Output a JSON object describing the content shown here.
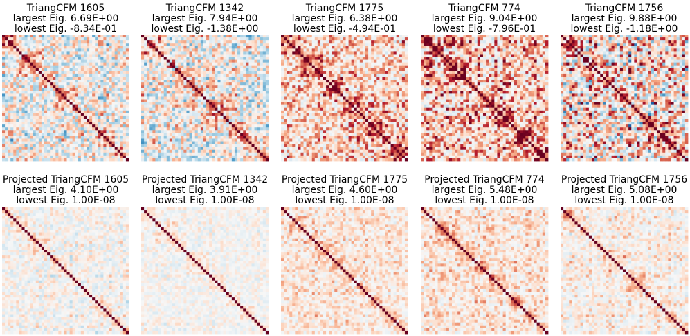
{
  "chart_data": [
    {
      "type": "heatmap",
      "row": 1,
      "title": "TriangCFM 1605",
      "largest_eig": "largest Eig. 6.69E+00",
      "lowest_eig": "lowest Eig. -8.34E-01",
      "size": 45,
      "seed": 1605,
      "block_style": "mixed",
      "neg_strength": 0.7,
      "pos_strength": 0.75,
      "vmin": -1,
      "vmax": 1
    },
    {
      "type": "heatmap",
      "row": 1,
      "title": "TriangCFM 1342",
      "largest_eig": "largest Eig. 7.94E+00",
      "lowest_eig": "lowest Eig. -1.38E+00",
      "size": 45,
      "seed": 1342,
      "block_style": "mixed",
      "neg_strength": 0.75,
      "pos_strength": 0.8,
      "vmin": -1,
      "vmax": 1
    },
    {
      "type": "heatmap",
      "row": 1,
      "title": "TriangCFM 1775",
      "largest_eig": "largest Eig. 6.38E+00",
      "lowest_eig": "lowest Eig. -4.94E-01",
      "size": 45,
      "seed": 1775,
      "block_style": "positive",
      "neg_strength": 0.35,
      "pos_strength": 0.8,
      "vmin": -1,
      "vmax": 1
    },
    {
      "type": "heatmap",
      "row": 1,
      "title": "TriangCFM 774",
      "largest_eig": "largest Eig. 9.04E+00",
      "lowest_eig": "lowest Eig. -7.96E-01",
      "size": 45,
      "seed": 774,
      "block_style": "positive",
      "neg_strength": 0.35,
      "pos_strength": 0.95,
      "vmin": -1,
      "vmax": 1
    },
    {
      "type": "heatmap",
      "row": 1,
      "title": "TriangCFM 1756",
      "largest_eig": "largest Eig. 9.88E+00",
      "lowest_eig": "lowest Eig. -1.18E+00",
      "size": 45,
      "seed": 1756,
      "block_style": "striped",
      "neg_strength": 0.7,
      "pos_strength": 0.95,
      "vmin": -1,
      "vmax": 1
    },
    {
      "type": "heatmap",
      "row": 2,
      "title": "Projected TriangCFM 1605",
      "largest_eig": "largest Eig. 4.10E+00",
      "lowest_eig": "lowest Eig. 1.00E-08",
      "size": 45,
      "seed": 11605,
      "block_style": "mixed",
      "neg_strength": 0.3,
      "pos_strength": 0.35,
      "vmin": -1,
      "vmax": 1
    },
    {
      "type": "heatmap",
      "row": 2,
      "title": "Projected TriangCFM 1342",
      "largest_eig": "largest Eig. 3.91E+00",
      "lowest_eig": "lowest Eig. 1.00E-08",
      "size": 45,
      "seed": 11342,
      "block_style": "mixed",
      "neg_strength": 0.22,
      "pos_strength": 0.25,
      "vmin": -1,
      "vmax": 1
    },
    {
      "type": "heatmap",
      "row": 2,
      "title": "Projected TriangCFM 1775",
      "largest_eig": "largest Eig. 4.60E+00",
      "lowest_eig": "lowest Eig. 1.00E-08",
      "size": 45,
      "seed": 11775,
      "block_style": "positive",
      "neg_strength": 0.2,
      "pos_strength": 0.4,
      "vmin": -1,
      "vmax": 1
    },
    {
      "type": "heatmap",
      "row": 2,
      "title": "Projected TriangCFM 774",
      "largest_eig": "largest Eig. 5.48E+00",
      "lowest_eig": "lowest Eig. 1.00E-08",
      "size": 45,
      "seed": 10774,
      "block_style": "positive",
      "neg_strength": 0.18,
      "pos_strength": 0.42,
      "vmin": -1,
      "vmax": 1
    },
    {
      "type": "heatmap",
      "row": 2,
      "title": "Projected TriangCFM 1756",
      "largest_eig": "largest Eig. 5.08E+00",
      "lowest_eig": "lowest Eig. 1.00E-08",
      "size": 45,
      "seed": 11756,
      "block_style": "striped",
      "neg_strength": 0.22,
      "pos_strength": 0.38,
      "vmin": -1,
      "vmax": 1
    }
  ],
  "colors": {
    "diverging_colormap": [
      "#053061",
      "#2166ac",
      "#4393c3",
      "#92c5de",
      "#d1e5f0",
      "#f7f7f7",
      "#fddbc7",
      "#f4a582",
      "#d6604d",
      "#b2182b",
      "#67001f"
    ],
    "background": "#ffffff",
    "text": "#000000"
  }
}
